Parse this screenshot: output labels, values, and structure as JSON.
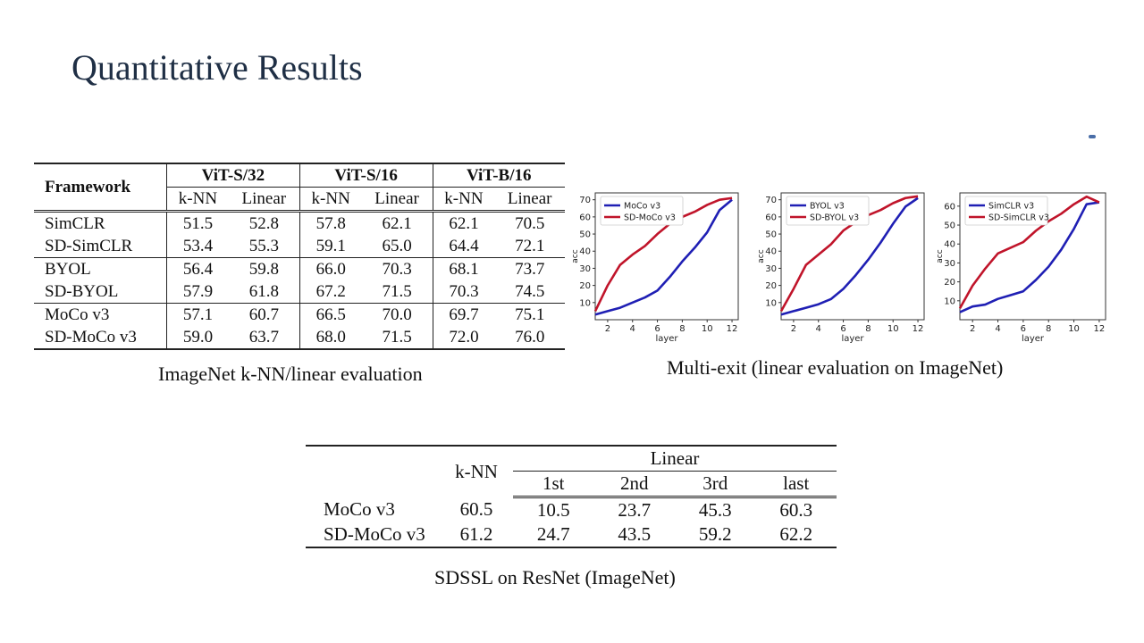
{
  "slide": {
    "title": "Quantitative Results"
  },
  "table_imagenet": {
    "framework_label": "Framework",
    "groups": [
      "ViT-S/32",
      "ViT-S/16",
      "ViT-B/16"
    ],
    "subheaders": [
      "k-NN",
      "Linear"
    ],
    "rows": [
      {
        "name": "SimCLR",
        "values": [
          "51.5",
          "52.8",
          "57.8",
          "62.1",
          "62.1",
          "70.5"
        ]
      },
      {
        "name": "SD-SimCLR",
        "values": [
          "53.4",
          "55.3",
          "59.1",
          "65.0",
          "64.4",
          "72.1"
        ]
      },
      {
        "name": "BYOL",
        "values": [
          "56.4",
          "59.8",
          "66.0",
          "70.3",
          "68.1",
          "73.7"
        ]
      },
      {
        "name": "SD-BYOL",
        "values": [
          "57.9",
          "61.8",
          "67.2",
          "71.5",
          "70.3",
          "74.5"
        ]
      },
      {
        "name": "MoCo v3",
        "values": [
          "57.1",
          "60.7",
          "66.5",
          "70.0",
          "69.7",
          "75.1"
        ]
      },
      {
        "name": "SD-MoCo v3",
        "values": [
          "59.0",
          "63.7",
          "68.0",
          "71.5",
          "72.0",
          "76.0"
        ]
      }
    ],
    "caption": "ImageNet k-NN/linear evaluation"
  },
  "table_resnet": {
    "knn_label": "k-NN",
    "linear_label": "Linear",
    "linear_sub": [
      "1st",
      "2nd",
      "3rd",
      "last"
    ],
    "rows": [
      {
        "name": "MoCo v3",
        "values": [
          "60.5",
          "10.5",
          "23.7",
          "45.3",
          "60.3"
        ]
      },
      {
        "name": "SD-MoCo v3",
        "values": [
          "61.2",
          "24.7",
          "43.5",
          "59.2",
          "62.2"
        ]
      }
    ],
    "caption": "SDSSL on ResNet (ImageNet)"
  },
  "multi_exit_caption": "Multi-exit (linear evaluation on ImageNet)",
  "chart_data": [
    {
      "type": "line",
      "xlabel": "layer",
      "ylabel": "acc",
      "xlim": [
        1,
        12.5
      ],
      "ylim": [
        0,
        74
      ],
      "xticks": [
        2,
        4,
        6,
        8,
        10,
        12
      ],
      "yticks": [
        10,
        20,
        30,
        40,
        50,
        60,
        70
      ],
      "x": [
        1,
        2,
        3,
        4,
        5,
        6,
        7,
        8,
        9,
        10,
        11,
        12
      ],
      "series": [
        {
          "name": "MoCo v3",
          "color": "#1f1fb4",
          "values": [
            3,
            5,
            7,
            10,
            13,
            17,
            25,
            34,
            42,
            51,
            64,
            70
          ]
        },
        {
          "name": "SD-MoCo v3",
          "color": "#c0142a",
          "values": [
            5,
            20,
            32,
            38,
            43,
            50,
            56,
            60,
            63,
            67,
            70,
            71
          ]
        }
      ]
    },
    {
      "type": "line",
      "xlabel": "layer",
      "ylabel": "acc",
      "xlim": [
        1,
        12.5
      ],
      "ylim": [
        0,
        74
      ],
      "xticks": [
        2,
        4,
        6,
        8,
        10,
        12
      ],
      "yticks": [
        10,
        20,
        30,
        40,
        50,
        60,
        70
      ],
      "x": [
        1,
        2,
        3,
        4,
        5,
        6,
        7,
        8,
        9,
        10,
        11,
        12
      ],
      "series": [
        {
          "name": "BYOL v3",
          "color": "#1f1fb4",
          "values": [
            3,
            5,
            7,
            9,
            12,
            18,
            26,
            35,
            45,
            56,
            66,
            71
          ]
        },
        {
          "name": "SD-BYOL v3",
          "color": "#c0142a",
          "values": [
            5,
            18,
            32,
            38,
            44,
            52,
            57,
            61,
            64,
            68,
            71,
            72
          ]
        }
      ]
    },
    {
      "type": "line",
      "xlabel": "layer",
      "ylabel": "acc",
      "xlim": [
        1,
        12.5
      ],
      "ylim": [
        0,
        67
      ],
      "xticks": [
        2,
        4,
        6,
        8,
        10,
        12
      ],
      "yticks": [
        10,
        20,
        30,
        40,
        50,
        60
      ],
      "x": [
        1,
        2,
        3,
        4,
        5,
        6,
        7,
        8,
        9,
        10,
        11,
        12
      ],
      "series": [
        {
          "name": "SimCLR v3",
          "color": "#1f1fb4",
          "values": [
            4,
            7,
            8,
            11,
            13,
            15,
            21,
            28,
            37,
            48,
            61,
            62
          ]
        },
        {
          "name": "SD-SimCLR v3",
          "color": "#c0142a",
          "values": [
            6,
            18,
            27,
            35,
            38,
            41,
            47,
            52,
            56,
            61,
            65,
            62
          ]
        }
      ]
    }
  ]
}
